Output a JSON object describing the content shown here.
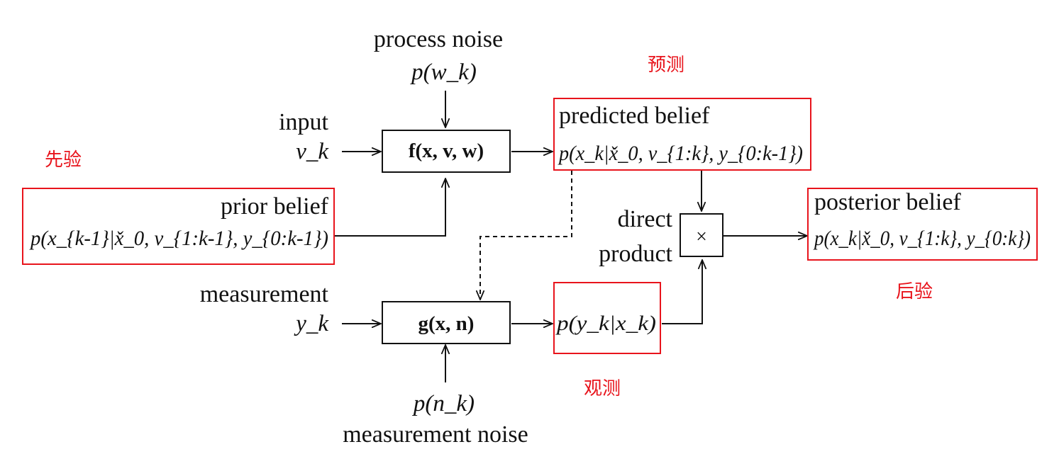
{
  "labels": {
    "process_noise": "process noise",
    "process_noise_formula": "p(w_k)",
    "input": "input",
    "input_var": "v_k",
    "prior_belief": "prior belief",
    "prior_belief_formula": "p(x_{k-1}|x̌_0, v_{1:k-1}, y_{0:k-1})",
    "predicted_belief": "predicted belief",
    "predicted_belief_formula": "p(x_k|x̌_0, v_{1:k}, y_{0:k-1})",
    "direct": "direct",
    "product": "product",
    "product_symbol": "×",
    "posterior_belief": "posterior belief",
    "posterior_belief_formula": "p(x_k|x̌_0, v_{1:k}, y_{0:k})",
    "measurement": "measurement",
    "measurement_var": "y_k",
    "measurement_model": "g(x, n)",
    "motion_model": "f(x, v, w)",
    "likelihood_formula": "p(y_k|x_k)",
    "measurement_noise_formula": "p(n_k)",
    "measurement_noise": "measurement noise"
  },
  "annotations": {
    "prior": "先验",
    "predict": "预测",
    "posterior": "后验",
    "observe": "观测"
  },
  "colors": {
    "ink": "#111111",
    "annotation": "#e8141c",
    "box_highlight": "#e8141c"
  }
}
